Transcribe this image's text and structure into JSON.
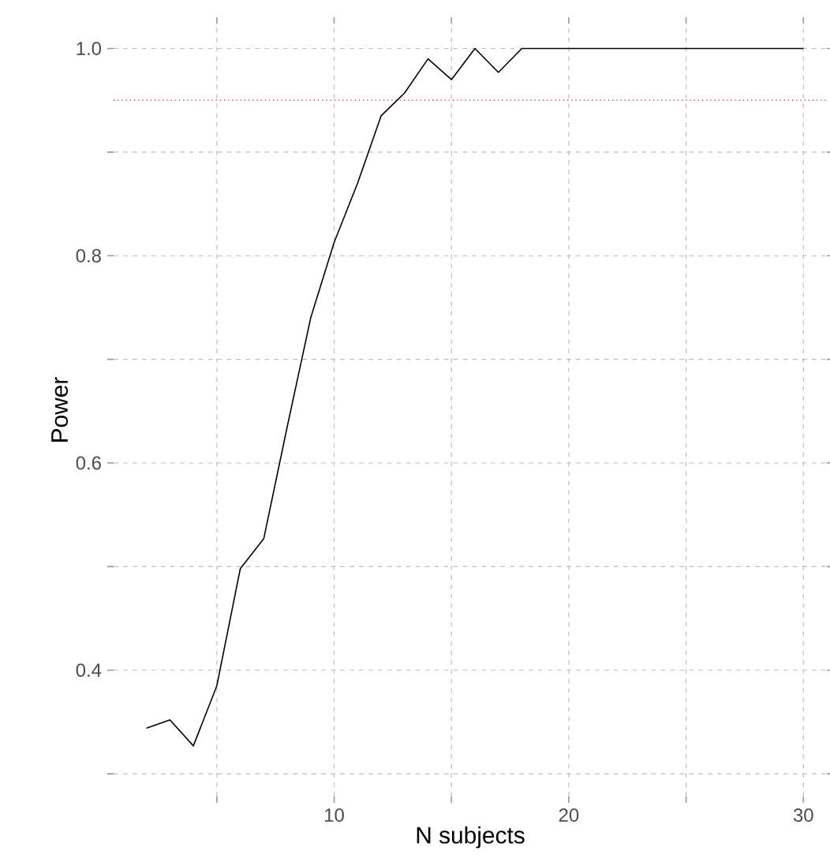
{
  "chart_data": {
    "type": "line",
    "xlabel": "N subjects",
    "ylabel": "Power",
    "x": [
      2,
      3,
      4,
      5,
      6,
      7,
      8,
      9,
      10,
      11,
      12,
      13,
      14,
      15,
      16,
      17,
      18,
      19,
      20,
      21,
      22,
      23,
      24,
      25,
      26,
      27,
      28,
      29,
      30
    ],
    "series": [
      {
        "color": "#000000",
        "values": [
          0.344,
          0.352,
          0.327,
          0.385,
          0.498,
          0.527,
          0.635,
          0.74,
          0.813,
          0.87,
          0.935,
          0.957,
          0.99,
          0.97,
          1.0,
          0.977,
          1.0,
          1.0,
          1.0,
          1.0,
          1.0,
          1.0,
          1.0,
          1.0,
          1.0,
          1.0,
          1.0,
          1.0,
          1.0
        ]
      }
    ],
    "xlim": [
      0.6,
      31.0
    ],
    "ylim": [
      0.278,
      1.024
    ],
    "xticks": [
      {
        "value": 5,
        "label": null
      },
      10,
      {
        "value": 15,
        "label": null
      },
      20,
      {
        "value": 25,
        "label": null
      },
      30
    ],
    "yticks": [
      {
        "value": 0.3,
        "label": null
      },
      0.4,
      {
        "value": 0.5,
        "label": null
      },
      0.6,
      {
        "value": 0.7,
        "label": null
      },
      0.8,
      {
        "value": 0.9,
        "label": null
      },
      {
        "value": 1.0,
        "label": "1.0"
      }
    ],
    "ref_lines": [
      {
        "axis": "y",
        "value": 0.95,
        "color": "#ff0000",
        "line_style": "dotted"
      }
    ],
    "grid": true,
    "marker": "none",
    "line_style": "solid"
  }
}
